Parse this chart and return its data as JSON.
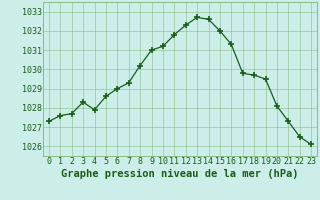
{
  "x": [
    0,
    1,
    2,
    3,
    4,
    5,
    6,
    7,
    8,
    9,
    10,
    11,
    12,
    13,
    14,
    15,
    16,
    17,
    18,
    19,
    20,
    21,
    22,
    23
  ],
  "y": [
    1027.3,
    1027.6,
    1027.7,
    1028.3,
    1027.9,
    1028.6,
    1029.0,
    1029.3,
    1030.2,
    1031.0,
    1031.2,
    1031.8,
    1032.3,
    1032.7,
    1032.6,
    1032.0,
    1031.3,
    1029.8,
    1029.7,
    1029.5,
    1028.1,
    1027.3,
    1026.5,
    1026.1
  ],
  "line_color": "#1a5c1a",
  "marker": "+",
  "marker_size": 4,
  "bg_color": "#cceee8",
  "grid_color": "#88bb88",
  "xlabel": "Graphe pression niveau de la mer (hPa)",
  "xlabel_color": "#1a5c1a",
  "xlabel_fontsize": 7.5,
  "tick_color": "#1a5c1a",
  "tick_fontsize": 6.0,
  "ylim": [
    1025.5,
    1033.5
  ],
  "yticks": [
    1026,
    1027,
    1028,
    1029,
    1030,
    1031,
    1032,
    1033
  ],
  "xticks": [
    0,
    1,
    2,
    3,
    4,
    5,
    6,
    7,
    8,
    9,
    10,
    11,
    12,
    13,
    14,
    15,
    16,
    17,
    18,
    19,
    20,
    21,
    22,
    23
  ],
  "xlim": [
    -0.5,
    23.5
  ]
}
